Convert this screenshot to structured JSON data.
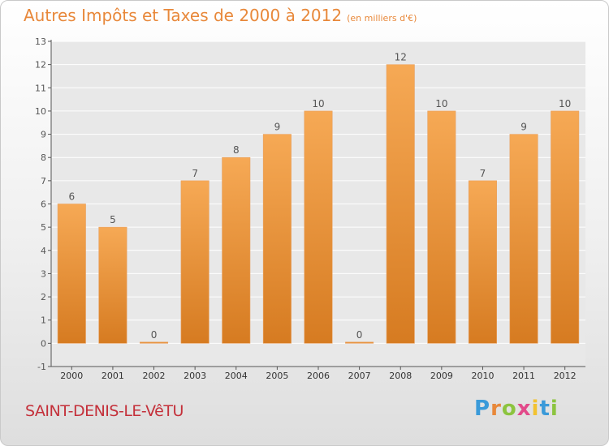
{
  "header": {
    "title": "Autres Impôts et Taxes de 2000 à 2012",
    "subtitle": "(en milliers d'€)"
  },
  "footer": {
    "commune": "SAINT-DENIS-LE-VêTU",
    "logo": "Proxiti"
  },
  "colors": {
    "bar_light": "#f6a955",
    "bar_dark": "#d67b21",
    "title": "#e8883a",
    "commune": "#c4303a",
    "plot_bg": "#e8e8e8",
    "grid": "#ffffff"
  },
  "chart_data": {
    "type": "bar",
    "categories": [
      "2000",
      "2001",
      "2002",
      "2003",
      "2004",
      "2005",
      "2006",
      "2007",
      "2008",
      "2009",
      "2010",
      "2011",
      "2012"
    ],
    "values": [
      6,
      5,
      0,
      7,
      8,
      9,
      10,
      0,
      12,
      10,
      7,
      9,
      10
    ],
    "title": "Autres Impôts et Taxes de 2000 à 2012",
    "xlabel": "",
    "ylabel": "",
    "ylim": [
      -1,
      13
    ],
    "yticks": [
      -1,
      0,
      1,
      2,
      3,
      4,
      5,
      6,
      7,
      8,
      9,
      10,
      11,
      12,
      13
    ],
    "grid": true
  }
}
